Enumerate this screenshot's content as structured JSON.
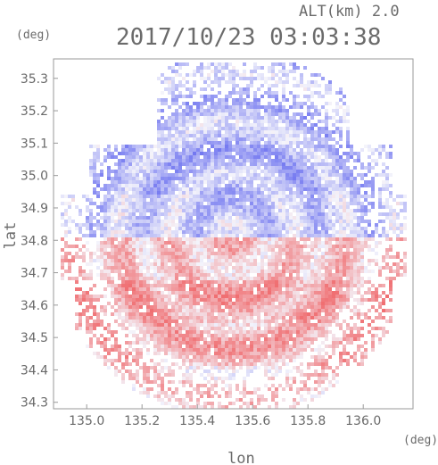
{
  "chart_data": {
    "type": "heatmap",
    "title": "2017/10/23 03:03:38",
    "altitude_label": "ALT(km) 2.0",
    "xlabel": "lon",
    "ylabel": "lat",
    "x_unit": "(deg)",
    "y_unit": "(deg)",
    "xlim": [
      134.88,
      136.18
    ],
    "ylim": [
      34.28,
      35.36
    ],
    "x_ticks": [
      "135.0",
      "135.2",
      "135.4",
      "135.6",
      "135.8",
      "136.0"
    ],
    "y_ticks": [
      "34.3",
      "34.4",
      "34.5",
      "34.6",
      "34.7",
      "34.8",
      "34.9",
      "35.0",
      "35.1",
      "35.2",
      "35.3"
    ],
    "radar_center": {
      "lon": 135.52,
      "lat": 34.82
    },
    "colors": {
      "negative": "#6f74f0",
      "positive": "#f06f72",
      "neutral": "#f4f4fb",
      "frame": "#9a9a9a",
      "text": "#6b6b6b"
    },
    "sectors": [
      {
        "lat_min": 34.28,
        "lat_max": 34.42,
        "lon_min": 135.0,
        "lon_max": 135.9,
        "mean": 0.25
      },
      {
        "lat_min": 34.42,
        "lat_max": 34.55,
        "lon_min": 134.95,
        "lon_max": 136.1,
        "mean": 0.45
      },
      {
        "lat_min": 34.55,
        "lat_max": 34.68,
        "lon_min": 134.95,
        "lon_max": 136.1,
        "mean": 0.55
      },
      {
        "lat_min": 34.68,
        "lat_max": 34.82,
        "lon_min": 134.9,
        "lon_max": 136.15,
        "mean": 0.35
      },
      {
        "lat_min": 34.82,
        "lat_max": 34.95,
        "lon_min": 134.9,
        "lon_max": 136.15,
        "mean": -0.3
      },
      {
        "lat_min": 34.95,
        "lat_max": 35.1,
        "lon_min": 135.0,
        "lon_max": 136.1,
        "mean": -0.45
      },
      {
        "lat_min": 35.1,
        "lat_max": 35.36,
        "lon_min": 135.25,
        "lon_max": 135.95,
        "mean": -0.4
      }
    ]
  }
}
